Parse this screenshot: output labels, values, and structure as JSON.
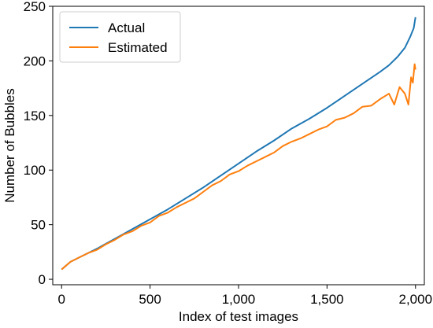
{
  "chart_data": {
    "type": "line",
    "title": "",
    "xlabel": "Index of test images",
    "ylabel": "Number of Bubbles",
    "xlim": [
      -50,
      2050
    ],
    "ylim": [
      -5,
      250
    ],
    "x_ticks": [
      0,
      500,
      1000,
      1500,
      2000
    ],
    "x_tick_labels": [
      "0",
      "500",
      "1,000",
      "1,500",
      "2,000"
    ],
    "y_ticks": [
      0,
      50,
      100,
      150,
      200,
      250
    ],
    "y_tick_labels": [
      "0",
      "50",
      "100",
      "150",
      "200",
      "250"
    ],
    "grid": false,
    "legend": {
      "placement": "top-left"
    },
    "series": [
      {
        "name": "Actual",
        "color": "#1f77b4",
        "x": [
          0,
          50,
          100,
          200,
          300,
          400,
          500,
          600,
          700,
          800,
          900,
          1000,
          1100,
          1200,
          1300,
          1400,
          1500,
          1600,
          1700,
          1800,
          1850,
          1900,
          1940,
          1970,
          1990,
          2000
        ],
        "y": [
          9,
          16,
          20,
          28,
          37,
          46,
          55,
          64,
          74,
          84,
          95,
          106,
          117,
          127,
          138,
          147,
          157,
          168,
          179,
          190,
          196,
          204,
          212,
          222,
          230,
          240
        ]
      },
      {
        "name": "Estimated",
        "color": "#ff7f0e",
        "x": [
          0,
          50,
          100,
          150,
          200,
          250,
          300,
          350,
          400,
          450,
          500,
          550,
          600,
          650,
          700,
          750,
          800,
          850,
          900,
          950,
          1000,
          1050,
          1100,
          1150,
          1200,
          1250,
          1300,
          1350,
          1400,
          1450,
          1500,
          1550,
          1600,
          1650,
          1700,
          1750,
          1800,
          1850,
          1880,
          1910,
          1940,
          1960,
          1975,
          1985,
          1995,
          2000
        ],
        "y": [
          9,
          16,
          20,
          24,
          27,
          32,
          36,
          41,
          44,
          49,
          52,
          58,
          61,
          66,
          70,
          74,
          80,
          86,
          90,
          96,
          99,
          104,
          108,
          112,
          116,
          122,
          126,
          129,
          133,
          137,
          140,
          146,
          148,
          152,
          158,
          159,
          165,
          170,
          160,
          176,
          170,
          160,
          185,
          180,
          197,
          192
        ]
      }
    ]
  }
}
